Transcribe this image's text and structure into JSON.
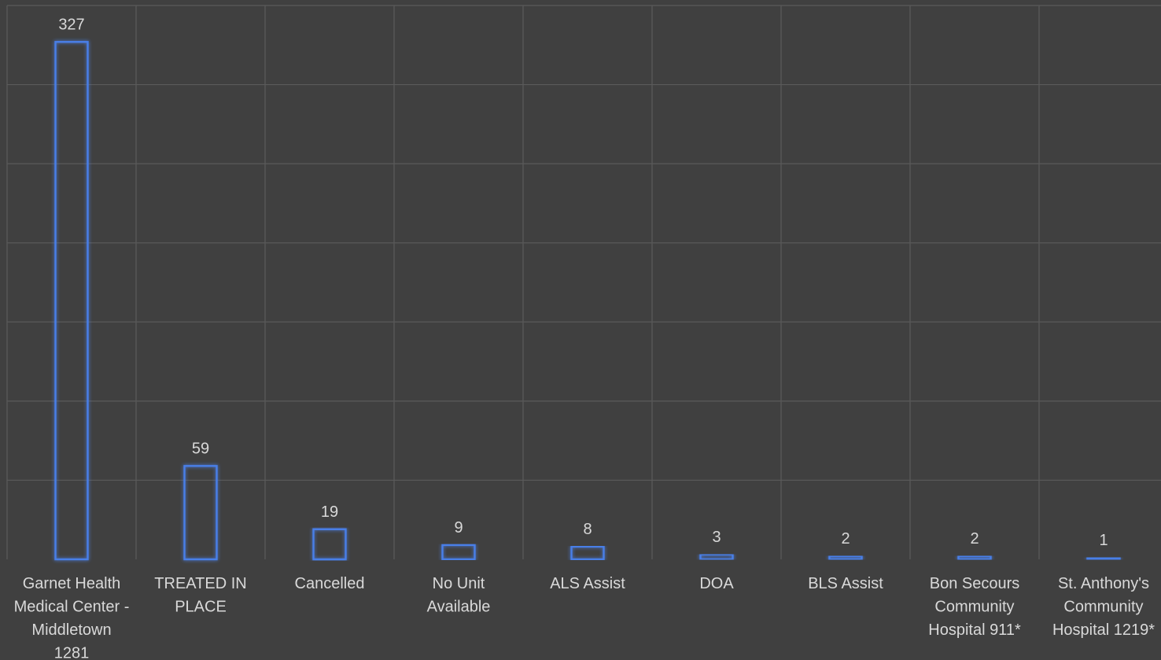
{
  "chart_data": {
    "type": "bar",
    "title": "",
    "xlabel": "",
    "ylabel": "",
    "ylim": [
      0,
      350
    ],
    "grid": true,
    "legend": "none",
    "bar_color": "#4a7fe8",
    "background_color": "#404040",
    "grid_color": "#5a5a5a",
    "text_color": "#d9d9d9",
    "categories": [
      "Garnet Health Medical Center - Middletown 1281",
      "TREATED IN PLACE",
      "Cancelled",
      "No Unit Available",
      "ALS Assist",
      "DOA",
      "BLS Assist",
      "Bon Secours Community Hospital  911*",
      "St. Anthony's Community Hospital 1219*"
    ],
    "category_label_lines": [
      [
        "Garnet Health",
        "Medical Center -",
        "Middletown",
        "1281"
      ],
      [
        "TREATED IN",
        "PLACE"
      ],
      [
        "Cancelled"
      ],
      [
        "No Unit",
        "Available"
      ],
      [
        "ALS Assist"
      ],
      [
        "DOA"
      ],
      [
        "BLS Assist"
      ],
      [
        "Bon Secours",
        "Community",
        "Hospital  911*"
      ],
      [
        "St. Anthony's",
        "Community",
        "Hospital 1219*"
      ]
    ],
    "values": [
      327,
      59,
      19,
      9,
      8,
      3,
      2,
      2,
      1
    ]
  }
}
